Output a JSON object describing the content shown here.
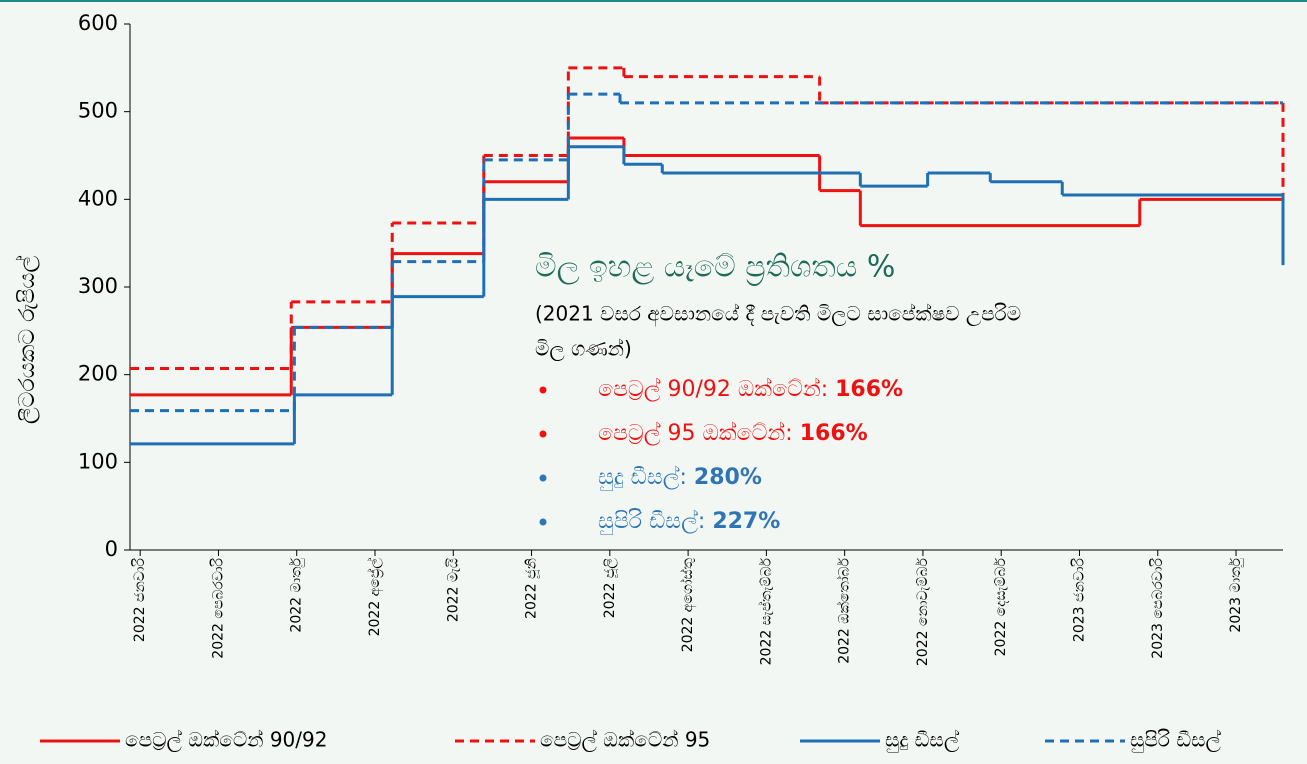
{
  "chart_data": {
    "type": "step-line",
    "ylabel": "ලීටරයකට රුපියල්",
    "xlim": [
      -0.13,
      14.6
    ],
    "xticks": [
      {
        "value": 0,
        "label": "2022 ජනවාරි"
      },
      {
        "value": 1,
        "label": "2022 පෙබරවාරි"
      },
      {
        "value": 2,
        "label": "2022 මාර්තු"
      },
      {
        "value": 3,
        "label": "2022 අප්‍රේල්"
      },
      {
        "value": 4,
        "label": "2022 මැයි"
      },
      {
        "value": 5,
        "label": "2022 ජූනි"
      },
      {
        "value": 6,
        "label": "2022 ජූලි"
      },
      {
        "value": 7,
        "label": "2022 අගෝස්තු"
      },
      {
        "value": 8,
        "label": "2022 සැප්තැම්බර්"
      },
      {
        "value": 9,
        "label": "2022 ඔක්තෝබර්"
      },
      {
        "value": 10,
        "label": "2022 නොවැම්බර්"
      },
      {
        "value": 11,
        "label": "2022 දෙසැම්බර්"
      },
      {
        "value": 12,
        "label": "2023 ජනවාරි"
      },
      {
        "value": 13,
        "label": "2023 පෙබරවාරි"
      },
      {
        "value": 14,
        "label": "2023 මාර්තු"
      }
    ],
    "ylim": [
      0,
      600
    ],
    "yticks": [
      0,
      100,
      200,
      300,
      400,
      500,
      600
    ],
    "series": [
      {
        "name": "පෙට්‍රල් ඔක්ටේන් 90/92",
        "color": "#ee1111",
        "dashed": false,
        "x": [
          -0.13,
          1.93,
          3.22,
          4.39,
          5.47,
          6.18,
          8.68,
          9.2,
          12.77,
          14.6
        ],
        "values": [
          177,
          254,
          338,
          420,
          470,
          450,
          410,
          370,
          400,
          400
        ]
      },
      {
        "name": "පෙට්‍රල් ඔක්ටේන් 95",
        "color": "#ee1111",
        "dashed": true,
        "x": [
          -0.13,
          1.93,
          3.22,
          4.39,
          5.47,
          6.18,
          8.68,
          14.6
        ],
        "values": [
          207,
          283,
          373,
          450,
          550,
          540,
          510,
          400
        ]
      },
      {
        "name": "සුදු ඩීසල්",
        "color": "#1f6fb5",
        "dashed": false,
        "x": [
          -0.13,
          1.97,
          3.22,
          4.39,
          5.47,
          6.18,
          6.67,
          9.2,
          10.06,
          10.86,
          11.78,
          14.6
        ],
        "values": [
          121,
          177,
          289,
          400,
          460,
          440,
          430,
          415,
          430,
          420,
          405,
          325
        ]
      },
      {
        "name": "සුපිරි ඩීසල්",
        "color": "#1f6fb5",
        "dashed": true,
        "x": [
          -0.13,
          1.97,
          3.22,
          4.39,
          5.47,
          6.13,
          14.6
        ],
        "values": [
          159,
          254,
          329,
          445,
          520,
          510,
          510
        ]
      }
    ],
    "annotation": {
      "title": "මිල ඉහළ යෑමේ ප්‍රතිශතය %",
      "subtitle_lines": [
        "(2021 වසර අවසානයේ දී පැවති මිලට සාපේක්ෂව උපරිම",
        "මිල ගණන්)"
      ],
      "items": [
        {
          "label": "පෙට්‍රල් 90/92 ඔක්ටේන්:",
          "value": "166%",
          "color": "#ee1111"
        },
        {
          "label": "පෙට්‍රල් 95 ඔක්ටේන්:",
          "value": "166%",
          "color": "#ee1111"
        },
        {
          "label": "සුදු ඩීසල්:",
          "value": "280%",
          "color": "#2e75b6"
        },
        {
          "label": "සුපිරි ඩීසල්:",
          "value": "227%",
          "color": "#2e75b6"
        }
      ]
    }
  }
}
